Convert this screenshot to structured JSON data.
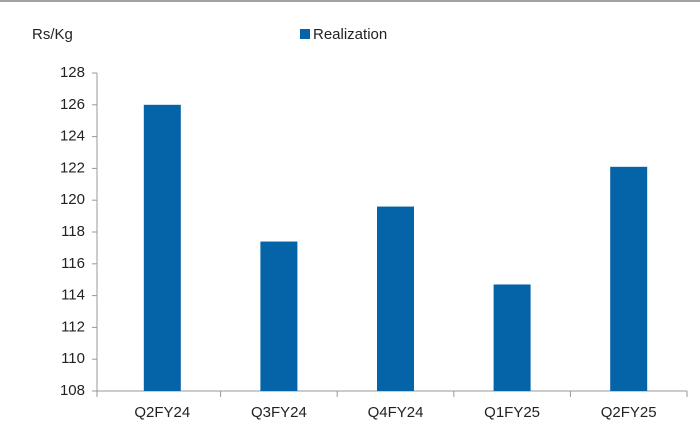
{
  "chart_data": {
    "type": "bar",
    "y_label": "Rs/Kg",
    "categories": [
      "Q2FY24",
      "Q3FY24",
      "Q4FY24",
      "Q1FY25",
      "Q2FY25"
    ],
    "series": [
      {
        "name": "Realization",
        "color": "#0563a8",
        "values": [
          126,
          117.4,
          119.6,
          114.7,
          122.1
        ]
      }
    ],
    "ylim": [
      108,
      128
    ],
    "yticks": [
      108,
      110,
      112,
      114,
      116,
      118,
      120,
      122,
      124,
      126,
      128
    ],
    "grid": false,
    "legend": "top"
  }
}
